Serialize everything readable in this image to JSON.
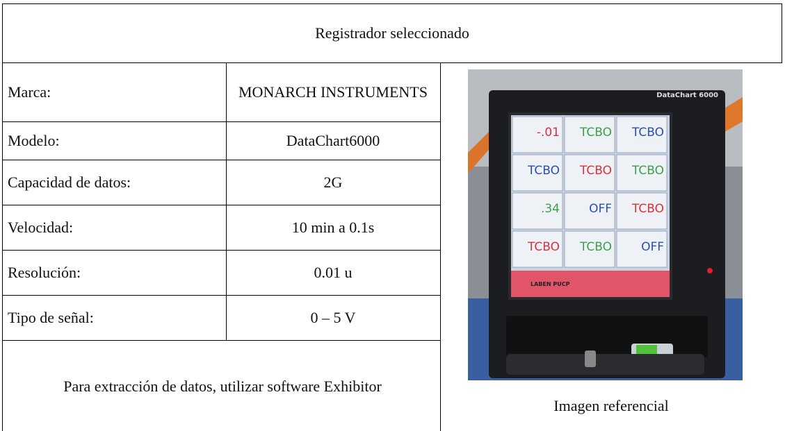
{
  "header": {
    "title": "Registrador seleccionado"
  },
  "table": {
    "rows": [
      [
        "Marca:",
        "MONARCH INSTRUMENTS"
      ],
      [
        "Modelo:",
        "DataChart6000"
      ],
      [
        "Capacidad de datos:",
        "2G"
      ],
      [
        "Velocidad:",
        "10 min a 0.1s"
      ],
      [
        "Resolución:",
        "0.01 u"
      ],
      [
        "Tipo de señal:",
        "0 – 5 V"
      ]
    ]
  },
  "footer": {
    "note": "Para extracción de datos, utilizar software Exhibitor"
  },
  "image": {
    "caption": "Imagen referencial",
    "device_label": "DataChart 6000",
    "screen_readings": [
      "-.01",
      "TCBO",
      "TCBO",
      "TCBO",
      "TCBO",
      "TCBO",
      ".34",
      "OFF",
      "TCBO",
      "TCBO",
      "TCBO",
      "OFF"
    ],
    "screen_footer": "LABEN PUCP"
  }
}
